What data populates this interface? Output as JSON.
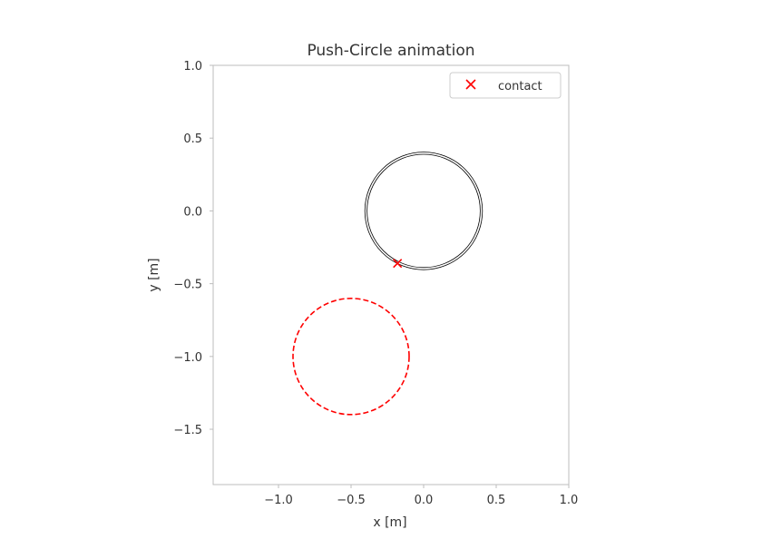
{
  "chart_data": {
    "type": "scatter",
    "title": "Push-Circle animation",
    "xlabel": "x [m]",
    "ylabel": "y [m]",
    "xlim": [
      -1.45,
      1.0
    ],
    "ylim": [
      -1.88,
      1.0
    ],
    "grid": false,
    "legend_position": "top-right",
    "x_ticks": [
      -1.0,
      -0.5,
      0.0,
      0.5,
      1.0
    ],
    "x_tick_labels": [
      "−1.0",
      "−0.5",
      "0.0",
      "0.5",
      "1.0"
    ],
    "y_ticks": [
      1.0,
      0.5,
      0.0,
      -0.5,
      -1.0,
      -1.5
    ],
    "y_tick_labels": [
      "1.0",
      "0.5",
      "0.0",
      "−0.5",
      "−1.0",
      "−1.5"
    ],
    "circles": [
      {
        "role": "object",
        "cx": 0.0,
        "cy": 0.0,
        "r": 0.405,
        "color": "#000000",
        "style": "solid"
      },
      {
        "role": "object",
        "cx": 0.0,
        "cy": 0.0,
        "r": 0.39,
        "color": "#000000",
        "style": "solid"
      },
      {
        "role": "target",
        "cx": -0.5,
        "cy": -1.0,
        "r": 0.4,
        "color": "#ff0000",
        "style": "dashed"
      }
    ],
    "series": [
      {
        "name": "contact",
        "marker": "x",
        "color": "#ff0000",
        "points": [
          {
            "x": -0.18,
            "y": -0.36
          }
        ]
      }
    ]
  }
}
